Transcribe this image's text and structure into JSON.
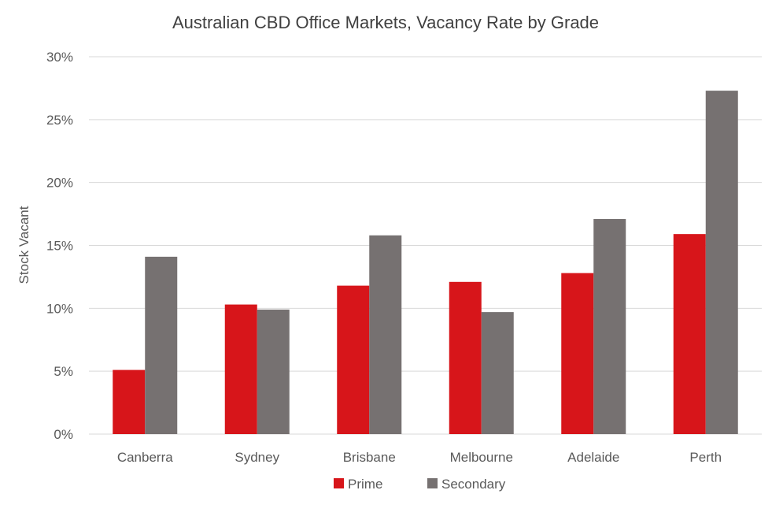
{
  "chart_data": {
    "type": "bar",
    "title": "Australian CBD Office Markets, Vacancy Rate by Grade",
    "ylabel": "Stock Vacant",
    "xlabel": "",
    "categories": [
      "Canberra",
      "Sydney",
      "Brisbane",
      "Melbourne",
      "Adelaide",
      "Perth"
    ],
    "series": [
      {
        "name": "Prime",
        "color": "#d7151a",
        "values": [
          5.1,
          10.3,
          11.8,
          12.1,
          12.8,
          15.9
        ]
      },
      {
        "name": "Secondary",
        "color": "#767171",
        "values": [
          14.1,
          9.9,
          15.8,
          9.7,
          17.1,
          27.3
        ]
      }
    ],
    "ylim": [
      0,
      30
    ],
    "yticks": [
      0,
      5,
      10,
      15,
      20,
      25,
      30
    ],
    "ytick_labels": [
      "0%",
      "5%",
      "10%",
      "15%",
      "20%",
      "25%",
      "30%"
    ],
    "grid": true,
    "legend_position": "bottom"
  }
}
